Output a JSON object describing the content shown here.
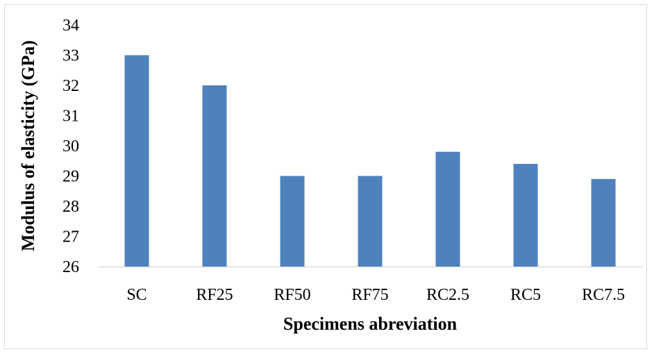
{
  "chart_data": {
    "type": "bar",
    "title": "",
    "xlabel": "Specimens abreviation",
    "ylabel": "Modulus of elasticity (GPa)",
    "categories": [
      "SC",
      "RF25",
      "RF50",
      "RF75",
      "RC2.5",
      "RC5",
      "RC7.5"
    ],
    "values": [
      33,
      32,
      29,
      29,
      29.8,
      29.4,
      28.9
    ],
    "ylim": [
      26,
      34
    ],
    "yticks": [
      26,
      27,
      28,
      29,
      30,
      31,
      32,
      33,
      34
    ],
    "grid": false,
    "legend": "none",
    "bar_color": "#4f81bd",
    "axis_color": "#d9d9d9"
  }
}
